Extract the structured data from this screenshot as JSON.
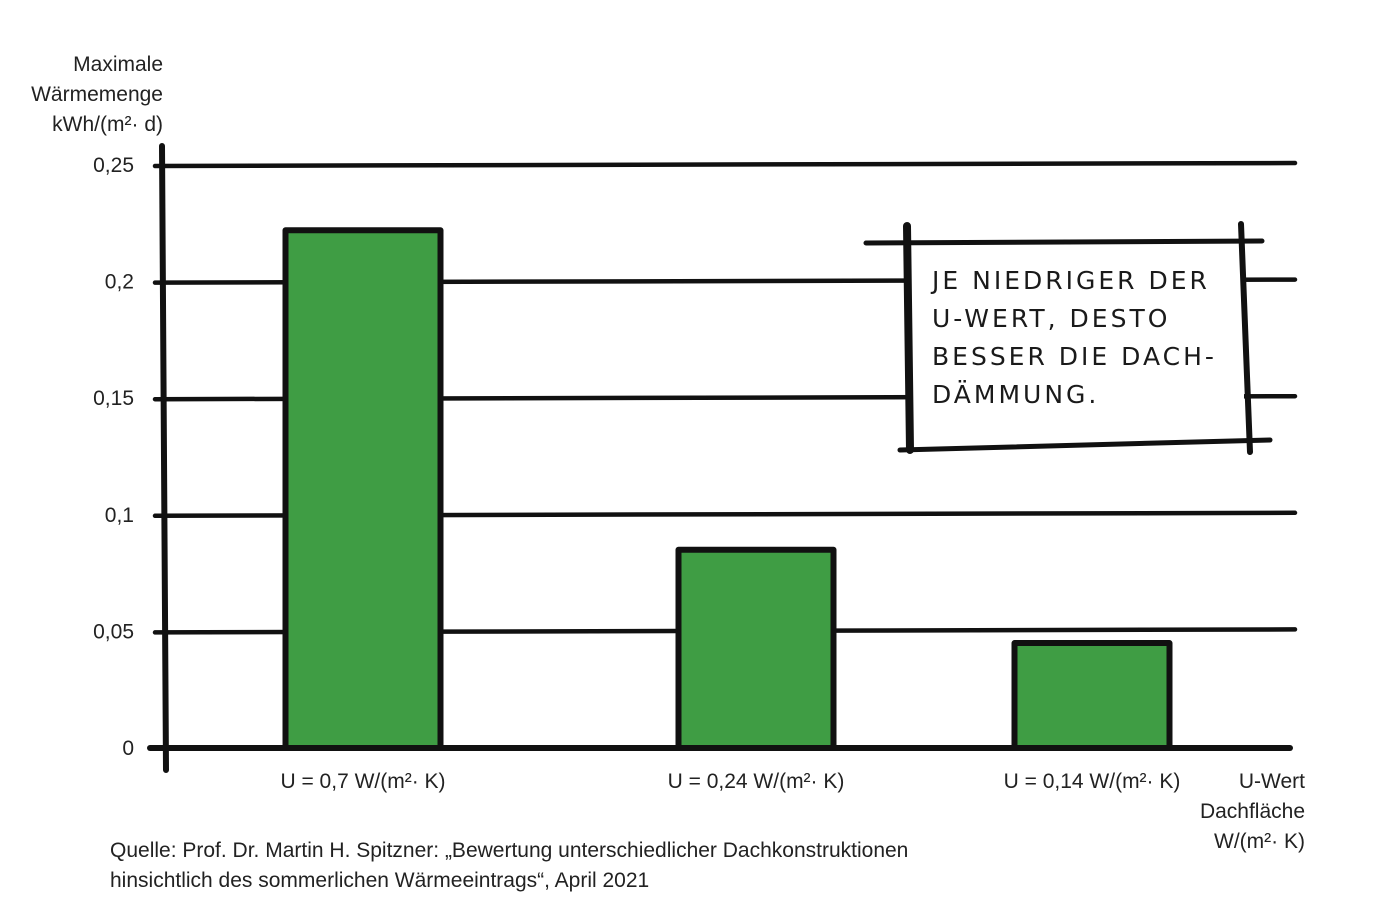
{
  "chart_data": {
    "type": "bar",
    "categories": [
      "U = 0,7 W/(m²· K)",
      "U = 0,24 W/(m²· K)",
      "U = 0,14 W/(m²· K)"
    ],
    "values": [
      0.222,
      0.085,
      0.045
    ],
    "ylim": [
      0,
      0.25
    ],
    "yticks": [
      "0",
      "0,05",
      "0,1",
      "0,15",
      "0,2",
      "0,25"
    ],
    "ylabel": [
      "Maximale",
      "Wärmemenge",
      "kWh/(m²· d)"
    ],
    "xlabel": [
      "U-Wert",
      "Dachfläche",
      "W/(m²· K)"
    ],
    "grid": true,
    "bar_color": "#3f9d44",
    "annotation": [
      "JE NIEDRIGER DER",
      "U-WERT, DESTO",
      "BESSER DIE DACH-",
      "DÄMMUNG."
    ]
  },
  "source": {
    "line1": "Quelle: Prof. Dr. Martin H. Spitzner: „Bewertung unterschiedlicher Dachkonstruktionen",
    "line2": "hinsichtlich des sommerlichen Wärmeeintrags“, April 2021"
  }
}
